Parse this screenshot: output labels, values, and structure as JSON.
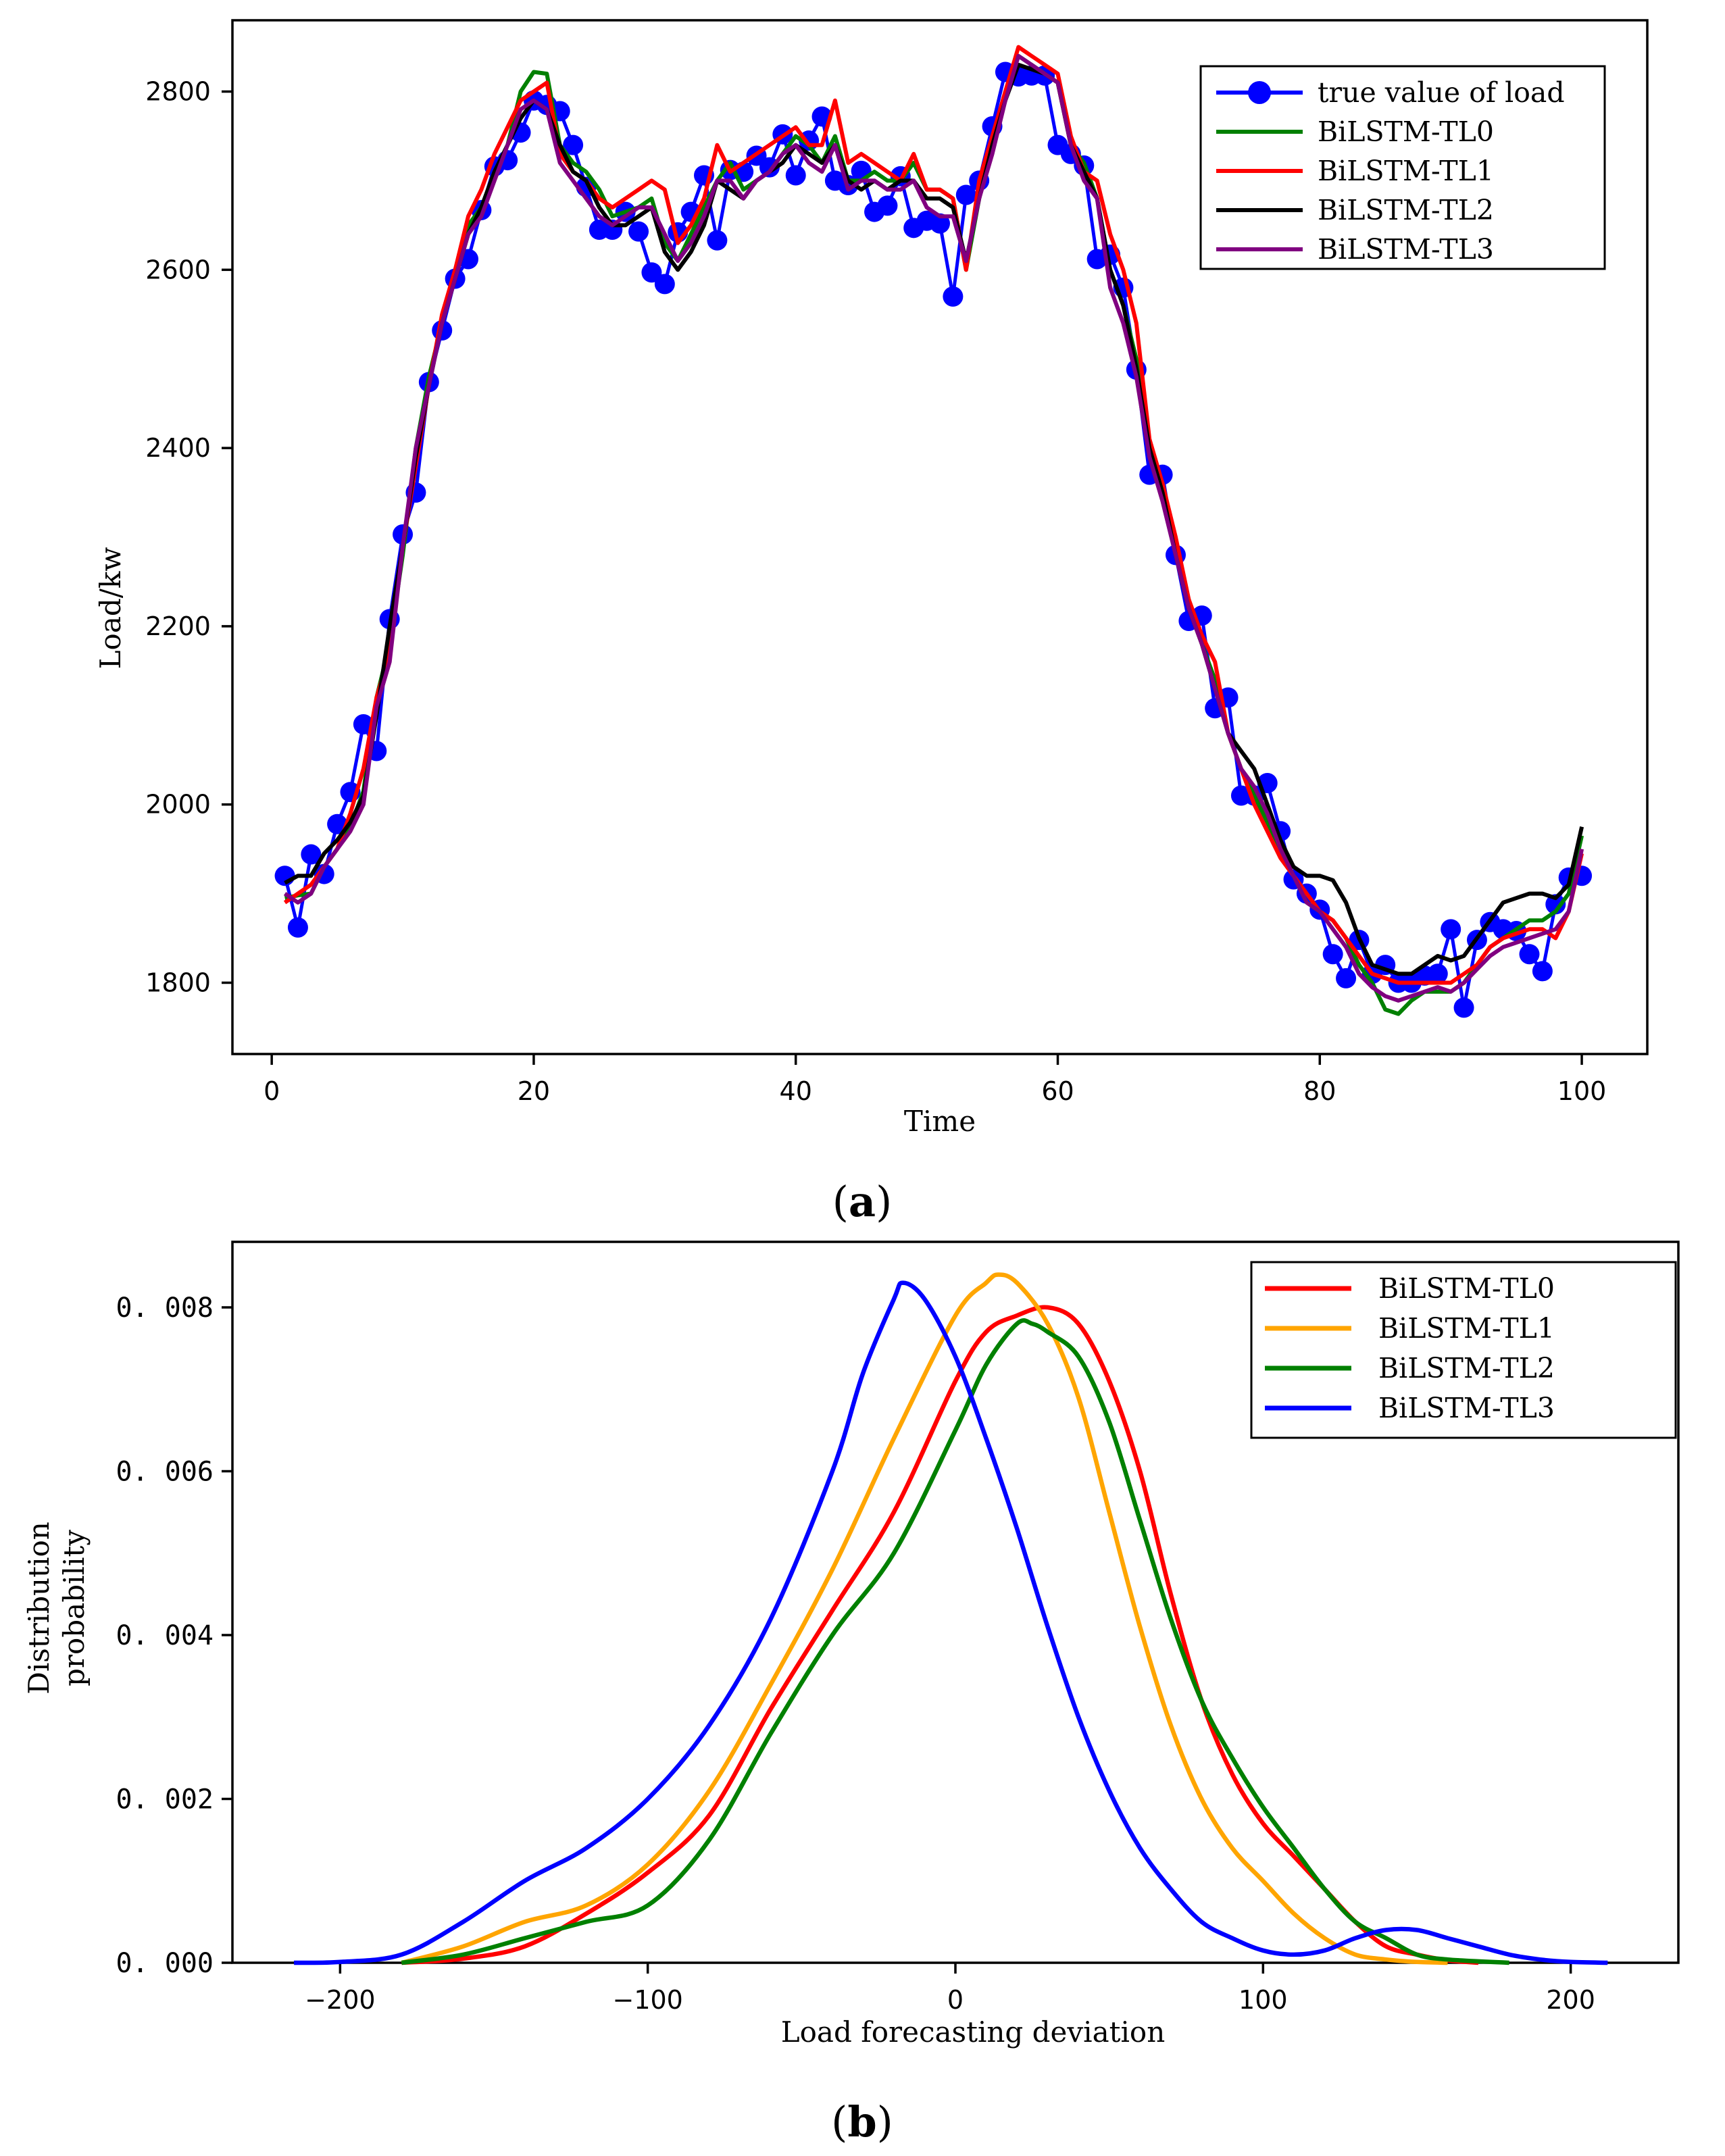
{
  "chart_data": [
    {
      "type": "line",
      "panel_label": "a",
      "xlabel": "Time",
      "ylabel": "Load/kw",
      "xlim": [
        -3,
        105
      ],
      "ylim": [
        1720,
        2880
      ],
      "xticks": [
        0,
        20,
        40,
        60,
        80,
        100
      ],
      "yticks": [
        1800,
        2000,
        2200,
        2400,
        2600,
        2800
      ],
      "xtick_labels": [
        "0",
        "20",
        "40",
        "60",
        "80",
        "100"
      ],
      "ytick_labels": [
        "1800",
        "2000",
        "2200",
        "2400",
        "2600",
        "2800"
      ],
      "legend_position": "top-right",
      "x": [
        1,
        2,
        3,
        4,
        5,
        6,
        7,
        8,
        9,
        10,
        11,
        12,
        13,
        14,
        15,
        16,
        17,
        18,
        19,
        20,
        21,
        22,
        23,
        24,
        25,
        26,
        27,
        28,
        29,
        30,
        31,
        32,
        33,
        34,
        35,
        36,
        37,
        38,
        39,
        40,
        41,
        42,
        43,
        44,
        45,
        46,
        47,
        48,
        49,
        50,
        51,
        52,
        53,
        54,
        55,
        56,
        57,
        58,
        59,
        60,
        61,
        62,
        63,
        64,
        65,
        66,
        67,
        68,
        69,
        70,
        71,
        72,
        73,
        74,
        75,
        76,
        77,
        78,
        79,
        80,
        81,
        82,
        83,
        84,
        85,
        86,
        87,
        88,
        89,
        90,
        91,
        92,
        93,
        94,
        95,
        96,
        97,
        98,
        99,
        100
      ],
      "series": [
        {
          "name": "true value of load",
          "color": "#0000ff",
          "marker": true,
          "values": [
            1920,
            1862,
            1944,
            1922,
            1978,
            2014,
            2090,
            2060,
            2208,
            2303,
            2350,
            2474,
            2532,
            2590,
            2612,
            2667,
            2716,
            2723,
            2754,
            2790,
            2785,
            2778,
            2740,
            2693,
            2645,
            2645,
            2665,
            2643,
            2597,
            2584,
            2642,
            2665,
            2706,
            2633,
            2712,
            2710,
            2728,
            2715,
            2752,
            2706,
            2745,
            2772,
            2700,
            2695,
            2711,
            2665,
            2672,
            2705,
            2647,
            2655,
            2652,
            2570,
            2684,
            2700,
            2761,
            2822,
            2817,
            2818,
            2818,
            2740,
            2730,
            2717,
            2612,
            2617,
            2580,
            2488,
            2370,
            2370,
            2280,
            2206,
            2212,
            2108,
            2120,
            2010,
            2010,
            2024,
            1970,
            1916,
            1900,
            1882,
            1832,
            1805,
            1848,
            1810,
            1820,
            1800,
            1800,
            1808,
            1810,
            1860,
            1772,
            1848,
            1868,
            1860,
            1858,
            1832,
            1813,
            1888,
            1918,
            1920
          ]
        },
        {
          "name": "BiLSTM-TL0",
          "color": "#008000",
          "marker": false,
          "values": [
            1895,
            1898,
            1900,
            1930,
            1950,
            1975,
            2015,
            2120,
            2180,
            2280,
            2400,
            2480,
            2540,
            2600,
            2650,
            2670,
            2710,
            2740,
            2800,
            2822,
            2820,
            2740,
            2720,
            2710,
            2690,
            2660,
            2665,
            2670,
            2680,
            2630,
            2610,
            2640,
            2670,
            2700,
            2720,
            2690,
            2700,
            2710,
            2730,
            2750,
            2740,
            2720,
            2750,
            2700,
            2700,
            2710,
            2700,
            2700,
            2720,
            2690,
            2690,
            2680,
            2600,
            2680,
            2740,
            2800,
            2840,
            2830,
            2820,
            2810,
            2740,
            2720,
            2680,
            2600,
            2560,
            2500,
            2400,
            2350,
            2280,
            2230,
            2180,
            2140,
            2080,
            2040,
            2010,
            1980,
            1950,
            1920,
            1890,
            1880,
            1870,
            1850,
            1820,
            1800,
            1770,
            1765,
            1780,
            1790,
            1790,
            1790,
            1800,
            1820,
            1840,
            1850,
            1860,
            1870,
            1870,
            1880,
            1900,
            1965
          ]
        },
        {
          "name": "BiLSTM-TL1",
          "color": "#ff0000",
          "marker": false,
          "values": [
            1890,
            1900,
            1910,
            1930,
            1950,
            1990,
            2040,
            2120,
            2170,
            2290,
            2380,
            2470,
            2550,
            2600,
            2660,
            2690,
            2730,
            2760,
            2790,
            2800,
            2810,
            2730,
            2710,
            2700,
            2680,
            2670,
            2680,
            2690,
            2700,
            2690,
            2630,
            2650,
            2680,
            2740,
            2710,
            2720,
            2730,
            2740,
            2750,
            2760,
            2740,
            2740,
            2790,
            2720,
            2730,
            2720,
            2710,
            2700,
            2730,
            2690,
            2690,
            2680,
            2600,
            2700,
            2750,
            2800,
            2850,
            2840,
            2830,
            2820,
            2750,
            2710,
            2700,
            2640,
            2600,
            2540,
            2410,
            2360,
            2300,
            2230,
            2190,
            2160,
            2080,
            2040,
            2000,
            1970,
            1940,
            1920,
            1900,
            1880,
            1870,
            1850,
            1830,
            1810,
            1805,
            1800,
            1800,
            1800,
            1800,
            1800,
            1810,
            1820,
            1840,
            1850,
            1855,
            1860,
            1860,
            1850,
            1880,
            1945
          ]
        },
        {
          "name": "BiLSTM-TL2",
          "color": "#000000",
          "marker": false,
          "values": [
            1912,
            1920,
            1920,
            1945,
            1960,
            1980,
            2010,
            2100,
            2200,
            2290,
            2390,
            2470,
            2540,
            2590,
            2640,
            2670,
            2710,
            2740,
            2770,
            2790,
            2780,
            2740,
            2710,
            2700,
            2670,
            2650,
            2650,
            2660,
            2670,
            2620,
            2600,
            2620,
            2650,
            2700,
            2690,
            2680,
            2700,
            2710,
            2720,
            2740,
            2730,
            2720,
            2740,
            2700,
            2690,
            2700,
            2690,
            2700,
            2700,
            2680,
            2680,
            2670,
            2610,
            2680,
            2740,
            2790,
            2830,
            2825,
            2820,
            2810,
            2740,
            2710,
            2680,
            2600,
            2560,
            2490,
            2400,
            2350,
            2280,
            2220,
            2180,
            2130,
            2080,
            2060,
            2040,
            2000,
            1960,
            1930,
            1920,
            1920,
            1915,
            1890,
            1850,
            1820,
            1815,
            1810,
            1810,
            1820,
            1830,
            1825,
            1830,
            1850,
            1870,
            1890,
            1895,
            1900,
            1900,
            1895,
            1910,
            1975
          ]
        },
        {
          "name": "BiLSTM-TL3",
          "color": "#800080",
          "marker": false,
          "values": [
            1900,
            1890,
            1900,
            1930,
            1950,
            1970,
            2000,
            2110,
            2160,
            2290,
            2400,
            2470,
            2540,
            2590,
            2640,
            2660,
            2700,
            2740,
            2780,
            2790,
            2780,
            2720,
            2700,
            2680,
            2660,
            2650,
            2660,
            2670,
            2670,
            2640,
            2610,
            2630,
            2660,
            2700,
            2700,
            2680,
            2700,
            2710,
            2730,
            2740,
            2720,
            2710,
            2740,
            2690,
            2700,
            2700,
            2690,
            2690,
            2700,
            2670,
            2660,
            2660,
            2610,
            2680,
            2730,
            2790,
            2840,
            2830,
            2820,
            2810,
            2740,
            2700,
            2680,
            2580,
            2540,
            2480,
            2390,
            2340,
            2280,
            2220,
            2180,
            2130,
            2080,
            2040,
            2020,
            1990,
            1950,
            1920,
            1890,
            1880,
            1860,
            1840,
            1810,
            1795,
            1785,
            1780,
            1785,
            1790,
            1795,
            1790,
            1800,
            1815,
            1830,
            1840,
            1845,
            1850,
            1855,
            1860,
            1880,
            1950
          ]
        }
      ]
    },
    {
      "type": "line",
      "panel_label": "b",
      "xlabel": "Load forecasting deviation",
      "ylabel_line1": "Distribution",
      "ylabel_line2": "probability",
      "xlim": [
        -235,
        235
      ],
      "ylim": [
        0,
        0.0088
      ],
      "xticks": [
        -200,
        -100,
        0,
        100,
        200
      ],
      "yticks": [
        0,
        0.002,
        0.004,
        0.006,
        0.008
      ],
      "xtick_labels": [
        "−200",
        "−100",
        "0",
        "100",
        "200"
      ],
      "ytick_labels": [
        "0. 000",
        "0. 002",
        "0. 004",
        "0. 006",
        "0. 008"
      ],
      "legend_position": "top-right",
      "series": [
        {
          "name": "BiLSTM-TL0",
          "color": "#ff0000",
          "x": [
            -180,
            -160,
            -140,
            -120,
            -100,
            -80,
            -60,
            -40,
            -20,
            0,
            10,
            20,
            30,
            40,
            50,
            60,
            70,
            80,
            90,
            100,
            110,
            120,
            130,
            140,
            150,
            160,
            170
          ],
          "values": [
            0,
            5e-05,
            0.0002,
            0.0006,
            0.0011,
            0.0018,
            0.0031,
            0.0043,
            0.0055,
            0.0071,
            0.0077,
            0.0079,
            0.008,
            0.0078,
            0.0071,
            0.006,
            0.0045,
            0.0032,
            0.0023,
            0.0017,
            0.0013,
            0.0009,
            0.0005,
            0.0002,
            0.0001,
            3e-05,
            0
          ]
        },
        {
          "name": "BiLSTM-TL1",
          "color": "#ffa500",
          "x": [
            -180,
            -160,
            -140,
            -120,
            -100,
            -80,
            -60,
            -40,
            -20,
            0,
            10,
            14,
            20,
            30,
            40,
            50,
            60,
            70,
            80,
            90,
            100,
            110,
            120,
            130,
            140,
            150,
            160
          ],
          "values": [
            0,
            0.0002,
            0.0005,
            0.0007,
            0.0012,
            0.0021,
            0.0034,
            0.0048,
            0.0064,
            0.0079,
            0.0083,
            0.0084,
            0.0083,
            0.0078,
            0.0069,
            0.0055,
            0.0041,
            0.0029,
            0.002,
            0.0014,
            0.001,
            0.0006,
            0.0003,
            0.0001,
            4e-05,
            1e-05,
            0
          ]
        },
        {
          "name": "BiLSTM-TL2",
          "color": "#008000",
          "x": [
            -180,
            -160,
            -140,
            -120,
            -100,
            -80,
            -60,
            -40,
            -20,
            0,
            10,
            20,
            25,
            30,
            40,
            50,
            60,
            70,
            80,
            90,
            100,
            110,
            120,
            130,
            140,
            150,
            160,
            180
          ],
          "values": [
            0,
            0.0001,
            0.0003,
            0.0005,
            0.0007,
            0.0015,
            0.0028,
            0.004,
            0.005,
            0.0065,
            0.0073,
            0.0078,
            0.0078,
            0.0077,
            0.0074,
            0.0066,
            0.0054,
            0.0042,
            0.0032,
            0.0025,
            0.0019,
            0.0014,
            0.0009,
            0.0005,
            0.0003,
            0.0001,
            4e-05,
            0
          ]
        },
        {
          "name": "BiLSTM-TL3",
          "color": "#0000ff",
          "x": [
            -215,
            -200,
            -180,
            -160,
            -140,
            -120,
            -100,
            -80,
            -60,
            -40,
            -30,
            -20,
            -17,
            -10,
            0,
            10,
            20,
            30,
            40,
            50,
            60,
            70,
            80,
            90,
            100,
            110,
            120,
            130,
            140,
            150,
            160,
            170,
            180,
            190,
            200,
            212
          ],
          "values": [
            0,
            1e-05,
            0.0001,
            0.0005,
            0.001,
            0.0014,
            0.002,
            0.0029,
            0.0042,
            0.006,
            0.0072,
            0.0081,
            0.0083,
            0.0081,
            0.0074,
            0.0064,
            0.0053,
            0.0041,
            0.003,
            0.0021,
            0.0014,
            0.0009,
            0.0005,
            0.0003,
            0.00015,
            0.0001,
            0.00015,
            0.0003,
            0.0004,
            0.0004,
            0.0003,
            0.0002,
            0.0001,
            4e-05,
            1e-05,
            0
          ]
        }
      ]
    }
  ]
}
